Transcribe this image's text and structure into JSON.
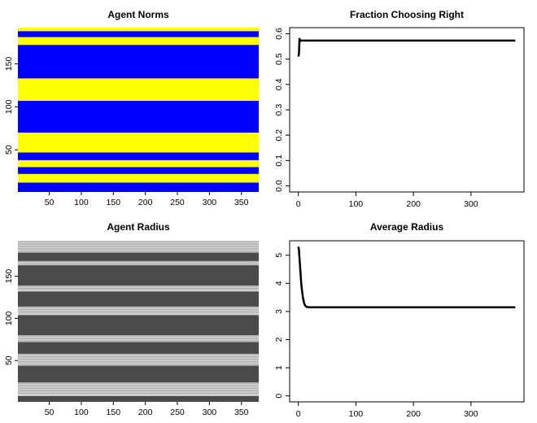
{
  "chart_data": [
    {
      "type": "heatmap",
      "title": "Agent Norms",
      "xlabel": "",
      "ylabel": "",
      "xlim": [
        1,
        377
      ],
      "ylim": [
        1,
        192
      ],
      "xticks": [
        50,
        100,
        150,
        200,
        250,
        300,
        350
      ],
      "yticks": [
        50,
        100,
        150
      ],
      "colors": {
        "norm_left": "#0000ff",
        "norm_right": "#ffff00"
      },
      "row_bands": [
        {
          "from": 1,
          "to": 12,
          "norm": "left"
        },
        {
          "from": 12,
          "to": 22,
          "norm": "right"
        },
        {
          "from": 22,
          "to": 30,
          "norm": "left"
        },
        {
          "from": 30,
          "to": 38,
          "norm": "right"
        },
        {
          "from": 38,
          "to": 47,
          "norm": "left"
        },
        {
          "from": 47,
          "to": 70,
          "norm": "right"
        },
        {
          "from": 70,
          "to": 107,
          "norm": "left"
        },
        {
          "from": 107,
          "to": 133,
          "norm": "right"
        },
        {
          "from": 133,
          "to": 172,
          "norm": "left"
        },
        {
          "from": 172,
          "to": 181,
          "norm": "right"
        },
        {
          "from": 181,
          "to": 188,
          "norm": "left"
        },
        {
          "from": 188,
          "to": 192,
          "norm": "right"
        }
      ]
    },
    {
      "type": "line",
      "title": "Fraction Choosing Right",
      "xlabel": "",
      "ylabel": "",
      "xlim": [
        0,
        377
      ],
      "ylim": [
        0,
        0.6
      ],
      "xticks": [
        0,
        100,
        200,
        300
      ],
      "yticks": [
        "0.0",
        "0.1",
        "0.2",
        "0.3",
        "0.4",
        "0.5",
        "0.6"
      ],
      "grid": false,
      "series": [
        {
          "x": [
            0,
            1,
            2,
            3,
            4,
            5,
            6,
            377
          ],
          "y": [
            0.51,
            0.52,
            0.58,
            0.57,
            0.574,
            0.573,
            0.573,
            0.573
          ]
        }
      ]
    },
    {
      "type": "heatmap",
      "title": "Agent Radius",
      "xlabel": "",
      "ylabel": "",
      "xlim": [
        1,
        377
      ],
      "ylim": [
        1,
        192
      ],
      "xticks": [
        50,
        100,
        150,
        200,
        250,
        300,
        350
      ],
      "yticks": [
        50,
        100,
        150
      ],
      "colors": {
        "dark": "#4a4a4a",
        "light": "#cfcfcf"
      },
      "row_bands": [
        {
          "from": 1,
          "to": 8,
          "shade": "dark"
        },
        {
          "from": 8,
          "to": 24,
          "shade": "light"
        },
        {
          "from": 24,
          "to": 44,
          "shade": "dark"
        },
        {
          "from": 44,
          "to": 58,
          "shade": "light"
        },
        {
          "from": 58,
          "to": 72,
          "shade": "dark"
        },
        {
          "from": 72,
          "to": 80,
          "shade": "light"
        },
        {
          "from": 80,
          "to": 104,
          "shade": "dark"
        },
        {
          "from": 104,
          "to": 114,
          "shade": "light"
        },
        {
          "from": 114,
          "to": 132,
          "shade": "dark"
        },
        {
          "from": 132,
          "to": 139,
          "shade": "light"
        },
        {
          "from": 139,
          "to": 163,
          "shade": "dark"
        },
        {
          "from": 163,
          "to": 168,
          "shade": "light"
        },
        {
          "from": 168,
          "to": 178,
          "shade": "dark"
        },
        {
          "from": 178,
          "to": 192,
          "shade": "light"
        }
      ]
    },
    {
      "type": "line",
      "title": "Average Radius",
      "xlabel": "",
      "ylabel": "",
      "xlim": [
        0,
        377
      ],
      "ylim": [
        0,
        5.3
      ],
      "xticks": [
        0,
        100,
        200,
        300
      ],
      "yticks": [
        0,
        1,
        2,
        3,
        4,
        5
      ],
      "grid": false,
      "series": [
        {
          "x": [
            0,
            1,
            2,
            3,
            4,
            5,
            6,
            8,
            10,
            12,
            15,
            20,
            377
          ],
          "y": [
            5.3,
            5.2,
            4.9,
            4.6,
            4.3,
            4.0,
            3.8,
            3.5,
            3.3,
            3.2,
            3.16,
            3.15,
            3.15
          ]
        }
      ]
    }
  ]
}
